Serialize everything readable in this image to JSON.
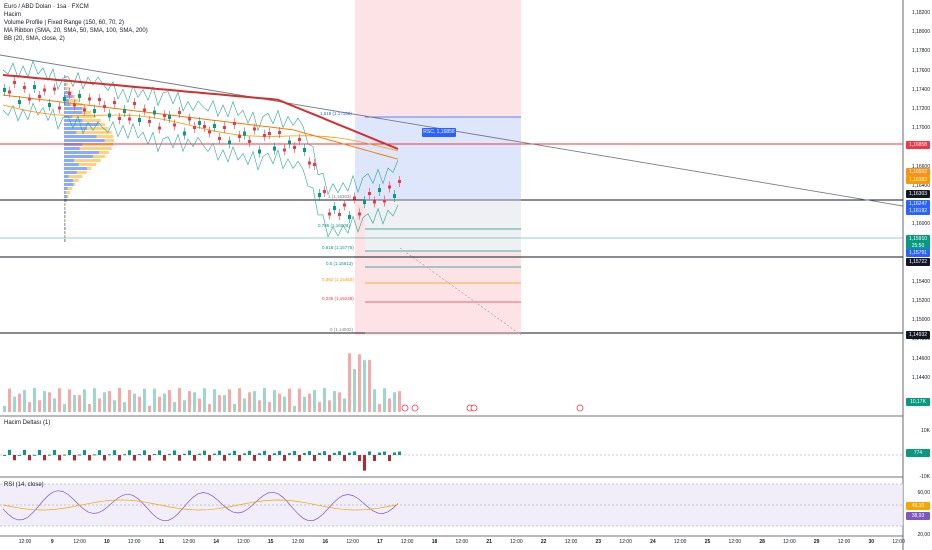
{
  "legend": {
    "symbol": "Euro / ABD Doları · 1sa · FXCM",
    "volume": "Hacim",
    "profile": "Volume Profile | Fixed Range (150, 60, 70, 2)",
    "ribbon": "MA Ribbon (SMA, 20, SMA, 50, SMA, 100, SMA, 200)",
    "bb": "BB (20, SMA, close, 2)"
  },
  "panes": {
    "delta_title": "Hacim Deltası (1)",
    "rsi_title": "RSI (14, close)"
  },
  "price_axis": {
    "ticks": [
      "1,18200",
      "1,18000",
      "1,17800",
      "1,17600",
      "1,17400",
      "1,17200",
      "1,17000",
      "1,16800",
      "1,16600",
      "1,16400",
      "1,16200",
      "1,16000",
      "1,15800",
      "1,15600",
      "1,15400",
      "1,15200",
      "1,15000",
      "1,14800",
      "1,14600",
      "1,14400"
    ],
    "badges": [
      {
        "text": "1,16858",
        "bg": "#f23645"
      },
      {
        "text": "1,16592",
        "bg": "#f7931a"
      },
      {
        "text": "1,16383",
        "bg": "#ff9800"
      },
      {
        "text": "1,16303",
        "bg": "#131722"
      },
      {
        "text": "1,16247",
        "bg": "#2962ff"
      },
      {
        "text": "1,16192",
        "bg": "#2962ff"
      },
      {
        "text": "1,15910",
        "bg": "#089981"
      },
      {
        "text": "25:50",
        "bg": "#089981"
      },
      {
        "text": "1,15791",
        "bg": "#2962ff"
      },
      {
        "text": "1,15722",
        "bg": "#131722"
      },
      {
        "text": "1,14932",
        "bg": "#131722"
      },
      {
        "text": "10,17K",
        "bg": "#089981"
      }
    ]
  },
  "delta_axis": {
    "ticks": [
      "10K",
      "-10K"
    ],
    "badge": {
      "text": "774",
      "bg": "#089981"
    }
  },
  "rsi_axis": {
    "ticks": [
      "60,00",
      "20,00"
    ],
    "badges": [
      {
        "text": "49,10",
        "bg": "#f7a600"
      },
      {
        "text": "38,93",
        "bg": "#7e57c2"
      }
    ]
  },
  "time_axis": [
    "12:00",
    "9",
    "12:00",
    "10",
    "12:00",
    "11",
    "12:00",
    "14",
    "12:00",
    "15",
    "12:00",
    "16",
    "12:00",
    "17",
    "12:00",
    "18",
    "12:00",
    "21",
    "12:00",
    "22",
    "12:00",
    "23",
    "12:00",
    "24",
    "12:00",
    "25",
    "12:00",
    "28",
    "12:00",
    "29",
    "12:00",
    "30",
    "12:00"
  ],
  "fib_levels": [
    {
      "label": "1,618 (1,17158)",
      "color": "#2962ff"
    },
    {
      "label": "1 (1,16303)",
      "color": "#787b86"
    },
    {
      "label": "0,786 (1,16009)",
      "color": "#089981"
    },
    {
      "label": "0,618 (1,15776)",
      "color": "#089981"
    },
    {
      "label": "0,5 (1,15613)",
      "color": "#089981"
    },
    {
      "label": "0,382 (1,15450)",
      "color": "#ff9800"
    },
    {
      "label": "0,236 (1,15248)",
      "color": "#f23645"
    },
    {
      "label": "0 (1,14932)",
      "color": "#787b86"
    }
  ],
  "tooltip": "RSC, 1,16858",
  "colors": {
    "up": "#089981",
    "down": "#f23645",
    "ma200": "#d32f2f",
    "ma100": "#f57c00",
    "ma50": "#ff9800",
    "ma20": "#2962ff",
    "bb": "#26a69a",
    "trend": "#787b86",
    "rsi": "#7e57c2",
    "rsi_ma": "#f7a600",
    "zone_red": "#fde3e5",
    "zone_blue": "#dde6fb"
  }
}
